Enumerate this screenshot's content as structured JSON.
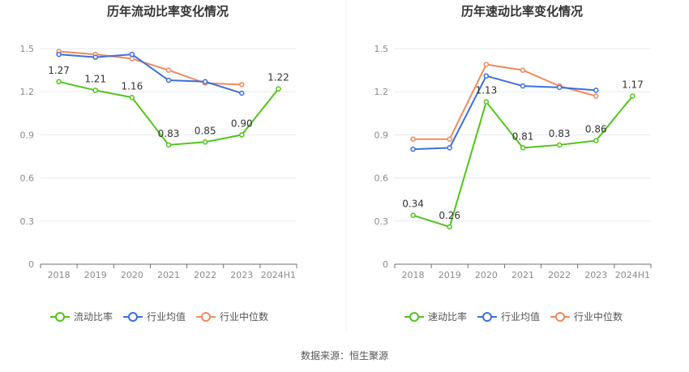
{
  "source_label": "数据来源：恒生聚源",
  "chart_data": [
    {
      "type": "line",
      "title": "历年流动比率变化情况",
      "categories": [
        "2018",
        "2019",
        "2020",
        "2021",
        "2022",
        "2023",
        "2024H1"
      ],
      "ylim": [
        0,
        1.5
      ],
      "yticks": [
        "0",
        "0.3",
        "0.6",
        "0.9",
        "1.2",
        "1.5"
      ],
      "grid": true,
      "legend_position": "bottom",
      "series": [
        {
          "name": "流动比率",
          "color": "#52c41a",
          "values": [
            1.27,
            1.21,
            1.16,
            0.83,
            0.85,
            0.9,
            1.22
          ],
          "labels": [
            "1.27",
            "1.21",
            "1.16",
            "0.83",
            "0.85",
            "0.90",
            "1.22"
          ]
        },
        {
          "name": "行业均值",
          "color": "#3d6fdb",
          "values": [
            1.46,
            1.44,
            1.46,
            1.28,
            1.27,
            1.19,
            null
          ]
        },
        {
          "name": "行业中位数",
          "color": "#f08a5d",
          "values": [
            1.48,
            1.46,
            1.43,
            1.35,
            1.26,
            1.25,
            null
          ]
        }
      ]
    },
    {
      "type": "line",
      "title": "历年速动比率变化情况",
      "categories": [
        "2018",
        "2019",
        "2020",
        "2021",
        "2022",
        "2023",
        "2024H1"
      ],
      "ylim": [
        0,
        1.5
      ],
      "yticks": [
        "0",
        "0.3",
        "0.6",
        "0.9",
        "1.2",
        "1.5"
      ],
      "grid": true,
      "legend_position": "bottom",
      "series": [
        {
          "name": "速动比率",
          "color": "#52c41a",
          "values": [
            0.34,
            0.26,
            1.13,
            0.81,
            0.83,
            0.86,
            1.17
          ],
          "labels": [
            "0.34",
            "0.26",
            "1.13",
            "0.81",
            "0.83",
            "0.86",
            "1.17"
          ]
        },
        {
          "name": "行业均值",
          "color": "#3d6fdb",
          "values": [
            0.8,
            0.81,
            1.31,
            1.24,
            1.23,
            1.21,
            null
          ]
        },
        {
          "name": "行业中位数",
          "color": "#f08a5d",
          "values": [
            0.87,
            0.87,
            1.39,
            1.35,
            1.24,
            1.17,
            null
          ]
        }
      ]
    }
  ]
}
